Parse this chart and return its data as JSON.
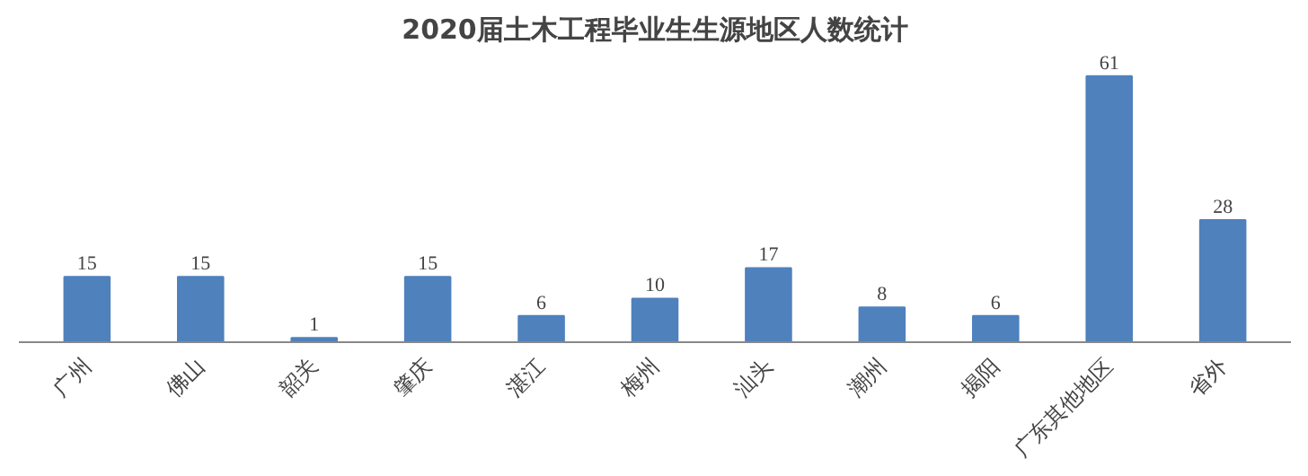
{
  "chart_data": {
    "type": "bar",
    "title": "2020届土木工程毕业生生源地区人数统计",
    "categories": [
      "广州",
      "佛山",
      "韶关",
      "肇庆",
      "湛江",
      "梅州",
      "汕头",
      "潮州",
      "揭阳",
      "广东其他地区",
      "省外"
    ],
    "values": [
      15,
      15,
      1,
      15,
      6,
      10,
      17,
      8,
      6,
      61,
      28
    ],
    "color": "#4f81bd",
    "data_labels": true
  }
}
